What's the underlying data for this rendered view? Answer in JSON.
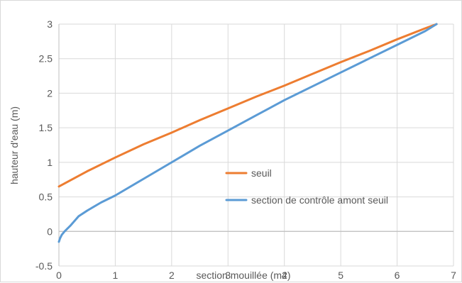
{
  "chart_data": {
    "type": "line",
    "title": "",
    "xlabel": "section mouillée (m2)",
    "ylabel": "hauteur d'eau (m)",
    "xlim": [
      0,
      7
    ],
    "ylim": [
      -0.5,
      3
    ],
    "grid": true,
    "legend_position": "right",
    "x_ticks": [
      0,
      1,
      2,
      3,
      4,
      5,
      6,
      7
    ],
    "y_ticks": [
      -0.5,
      0,
      0.5,
      1,
      1.5,
      2,
      2.5,
      3
    ],
    "series": [
      {
        "name": "seuil",
        "color": "#ED7D31",
        "x": [
          0,
          0.5,
          1,
          1.5,
          2,
          2.5,
          3,
          3.5,
          4,
          4.5,
          5,
          5.5,
          6,
          6.5,
          6.7
        ],
        "y": [
          0.65,
          0.87,
          1.07,
          1.26,
          1.43,
          1.61,
          1.78,
          1.95,
          2.11,
          2.28,
          2.45,
          2.61,
          2.78,
          2.94,
          3.0
        ]
      },
      {
        "name": "section de contrôle amont seuil",
        "color": "#5B9BD5",
        "x": [
          0,
          0.02,
          0.05,
          0.1,
          0.2,
          0.35,
          0.5,
          0.75,
          1,
          1.5,
          2,
          2.5,
          3,
          3.5,
          4,
          4.5,
          5,
          5.5,
          6,
          6.5,
          6.7
        ],
        "y": [
          -0.15,
          -0.1,
          -0.05,
          0.0,
          0.08,
          0.22,
          0.3,
          0.42,
          0.52,
          0.76,
          1.0,
          1.24,
          1.46,
          1.68,
          1.9,
          2.1,
          2.3,
          2.5,
          2.7,
          2.9,
          3.0
        ]
      }
    ]
  }
}
